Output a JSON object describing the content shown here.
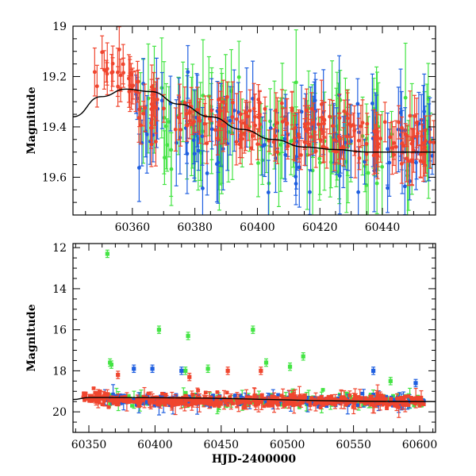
{
  "colors": {
    "green": "#44e444",
    "blue": "#1f5fe0",
    "red": "#f0452e",
    "model": "#000000"
  },
  "chart_data": [
    {
      "type": "scatter",
      "panel": "top",
      "xlabel": "",
      "ylabel": "Magnitude",
      "xlim": [
        60341,
        60457
      ],
      "ylim": [
        19.75,
        19.0
      ],
      "y_inverted": true,
      "xticks": [
        60360,
        60380,
        60400,
        60420,
        60440
      ],
      "yticks": [
        19.0,
        19.2,
        19.4,
        19.6
      ],
      "model_curve": {
        "description": "smooth black line",
        "x": [
          60341,
          60350,
          60358,
          60366,
          60375,
          60385,
          60395,
          60405,
          60415,
          60425,
          60435,
          60445,
          60457
        ],
        "y": [
          19.36,
          19.28,
          19.25,
          19.26,
          19.31,
          19.36,
          19.41,
          19.45,
          19.48,
          19.49,
          19.5,
          19.5,
          19.5
        ]
      },
      "series": [
        {
          "color": "red",
          "x_range": [
            60347,
            60457
          ],
          "approx_level": [
            19.15,
            19.5
          ],
          "typical_error": 0.07
        },
        {
          "color": "green",
          "x_range": [
            60361,
            60457
          ],
          "approx_level": [
            19.4,
            19.5
          ],
          "typical_error": 0.15
        },
        {
          "color": "blue",
          "x_range": [
            60361,
            60457
          ],
          "approx_level": [
            19.4,
            19.5
          ],
          "typical_error": 0.12
        }
      ]
    },
    {
      "type": "scatter",
      "panel": "bottom",
      "xlabel": "HJD-2400000",
      "ylabel": "Magnitude",
      "xlim": [
        60338,
        60612
      ],
      "ylim": [
        21.0,
        11.8
      ],
      "y_inverted": true,
      "xticks": [
        60350,
        60400,
        60450,
        60500,
        60550,
        60600
      ],
      "yticks": [
        12,
        14,
        16,
        18,
        20
      ],
      "outliers": [
        {
          "color": "green",
          "x": 60364,
          "y": 12.3
        },
        {
          "color": "green",
          "x": 60366,
          "y": 17.6
        },
        {
          "color": "green",
          "x": 60367,
          "y": 17.7
        },
        {
          "color": "green",
          "x": 60403,
          "y": 16.0
        },
        {
          "color": "green",
          "x": 60425,
          "y": 16.3
        },
        {
          "color": "green",
          "x": 60474,
          "y": 16.0
        },
        {
          "color": "green",
          "x": 60512,
          "y": 17.3
        },
        {
          "color": "green",
          "x": 60440,
          "y": 17.9
        },
        {
          "color": "green",
          "x": 60484,
          "y": 17.6
        },
        {
          "color": "green",
          "x": 60502,
          "y": 17.8
        },
        {
          "color": "green",
          "x": 60423,
          "y": 18.0
        },
        {
          "color": "green",
          "x": 60578,
          "y": 18.5
        },
        {
          "color": "blue",
          "x": 60384,
          "y": 17.9
        },
        {
          "color": "blue",
          "x": 60398,
          "y": 17.9
        },
        {
          "color": "blue",
          "x": 60420,
          "y": 18.0
        },
        {
          "color": "blue",
          "x": 60565,
          "y": 18.0
        },
        {
          "color": "blue",
          "x": 60597,
          "y": 18.6
        },
        {
          "color": "red",
          "x": 60455,
          "y": 18.0
        },
        {
          "color": "red",
          "x": 60480,
          "y": 18.0
        },
        {
          "color": "red",
          "x": 60426,
          "y": 18.3
        },
        {
          "color": "red",
          "x": 60372,
          "y": 18.2
        }
      ],
      "model_curve": {
        "description": "black line near magnitude 19.5",
        "x": [
          60338,
          60350,
          60360,
          60612
        ],
        "y": [
          19.4,
          19.3,
          19.3,
          19.5
        ]
      }
    }
  ]
}
